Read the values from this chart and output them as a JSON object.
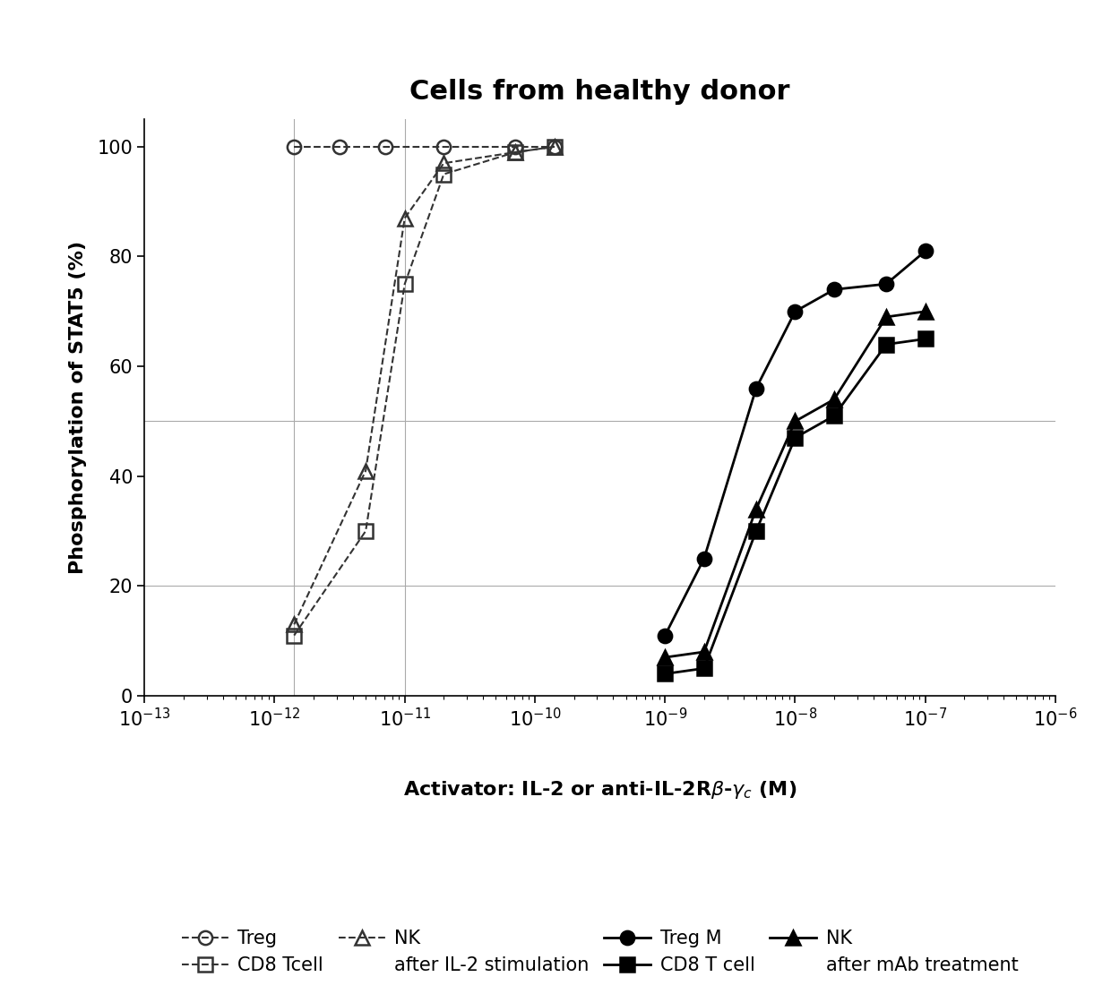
{
  "title": "Cells from healthy donor",
  "ylabel": "Phosphorylation of STAT5 (%)",
  "ylim": [
    0,
    105
  ],
  "hlines": [
    20,
    50
  ],
  "vlines": [
    -11.85,
    -11.0
  ],
  "series": {
    "treg_il2": {
      "x": [
        -11.85,
        -11.5,
        -11.15,
        -10.7,
        -10.15,
        -9.85
      ],
      "y": [
        100,
        100,
        100,
        100,
        100,
        100
      ],
      "label": "Treg",
      "color": "#333333",
      "linestyle": "dashed",
      "marker": "o",
      "filled": false,
      "markersize": 11,
      "linewidth": 1.5
    },
    "cd8_il2": {
      "x": [
        -11.85,
        -11.3,
        -11.0,
        -10.7,
        -10.15,
        -9.85
      ],
      "y": [
        11,
        30,
        75,
        95,
        99,
        100
      ],
      "label": "CD8 Tcell",
      "color": "#333333",
      "linestyle": "dashed",
      "marker": "s",
      "filled": false,
      "markersize": 11,
      "linewidth": 1.5
    },
    "nk_il2": {
      "x": [
        -11.85,
        -11.3,
        -11.0,
        -10.7,
        -10.15,
        -9.85
      ],
      "y": [
        13,
        41,
        87,
        97,
        99,
        100
      ],
      "label": "NK",
      "color": "#333333",
      "linestyle": "dashed",
      "marker": "^",
      "filled": false,
      "markersize": 11,
      "linewidth": 1.5
    },
    "treg_mab": {
      "x": [
        -9.0,
        -8.7,
        -8.3,
        -8.0,
        -7.7,
        -7.3,
        -7.0
      ],
      "y": [
        11,
        25,
        56,
        70,
        74,
        75,
        81
      ],
      "label": "Treg M",
      "color": "#000000",
      "linestyle": "solid",
      "marker": "o",
      "filled": true,
      "markersize": 11,
      "linewidth": 2
    },
    "cd8_mab": {
      "x": [
        -9.0,
        -8.7,
        -8.3,
        -8.0,
        -7.7,
        -7.3,
        -7.0
      ],
      "y": [
        4,
        5,
        30,
        47,
        51,
        64,
        65
      ],
      "label": "CD8 T cell",
      "color": "#000000",
      "linestyle": "solid",
      "marker": "s",
      "filled": true,
      "markersize": 11,
      "linewidth": 2
    },
    "nk_mab": {
      "x": [
        -9.0,
        -8.7,
        -8.3,
        -8.0,
        -7.7,
        -7.3,
        -7.0
      ],
      "y": [
        7,
        8,
        34,
        50,
        54,
        69,
        70
      ],
      "label": "NK",
      "color": "#000000",
      "linestyle": "solid",
      "marker": "^",
      "filled": true,
      "markersize": 11,
      "linewidth": 2
    }
  },
  "background_color": "#ffffff"
}
